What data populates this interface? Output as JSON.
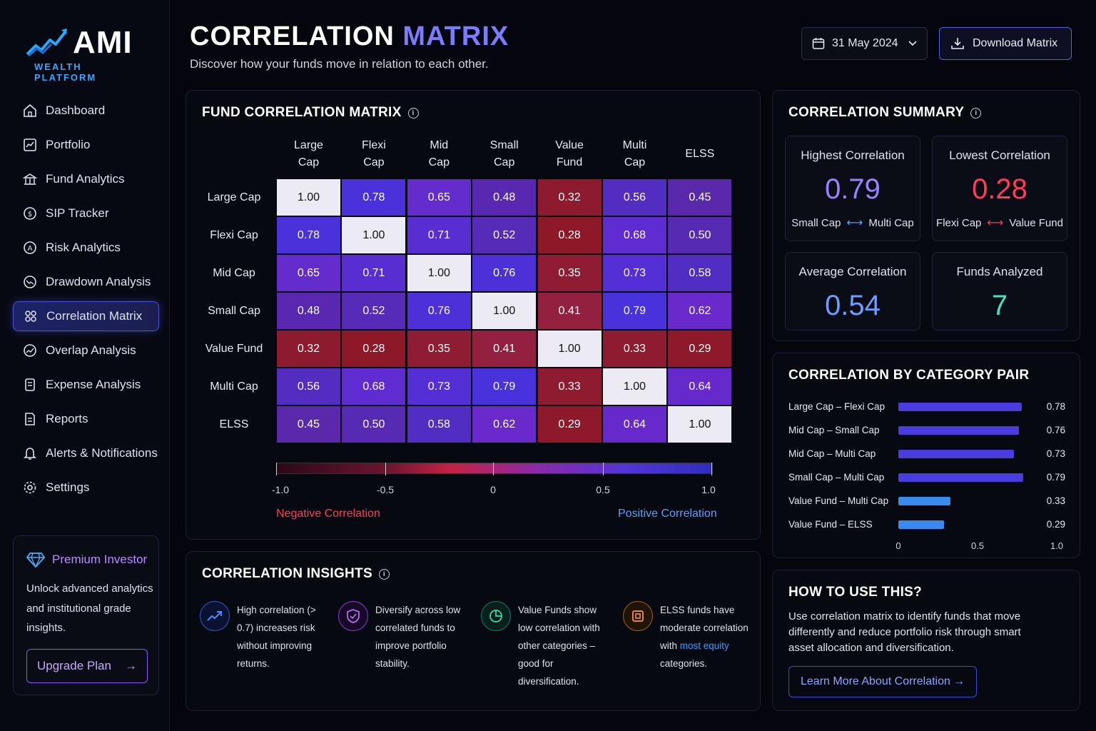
{
  "brand": {
    "name": "AMI",
    "subtitle": "WEALTH PLATFORM"
  },
  "nav": [
    {
      "label": "Dashboard",
      "icon": "home-icon"
    },
    {
      "label": "Portfolio",
      "icon": "chart-icon"
    },
    {
      "label": "Fund Analytics",
      "icon": "bank-icon"
    },
    {
      "label": "SIP Tracker",
      "icon": "sip-icon"
    },
    {
      "label": "Risk Analytics",
      "icon": "risk-icon"
    },
    {
      "label": "Drawdown Analysis",
      "icon": "drawdown-icon"
    },
    {
      "label": "Correlation Matrix",
      "icon": "grid-icon",
      "active": true
    },
    {
      "label": "Overlap Analysis",
      "icon": "overlap-icon"
    },
    {
      "label": "Expense Analysis",
      "icon": "expense-icon"
    },
    {
      "label": "Reports",
      "icon": "report-icon"
    },
    {
      "label": "Alerts & Notifications",
      "icon": "bell-icon"
    },
    {
      "label": "Settings",
      "icon": "gear-icon"
    }
  ],
  "premium": {
    "title": "Premium Investor",
    "text": "Unlock advanced analytics and institutional grade insights.",
    "button": "Upgrade Plan"
  },
  "header": {
    "title_part1": "CORRELATION",
    "title_part2": "MATRIX",
    "subtitle": "Discover how your funds move in relation to each other.",
    "date": "31 May 2024",
    "download": "Download Matrix"
  },
  "matrix": {
    "title": "FUND CORRELATION MATRIX",
    "col_heads": [
      [
        "Large",
        "Cap"
      ],
      [
        "Flexi",
        "Cap"
      ],
      [
        "Mid",
        "Cap"
      ],
      [
        "Small",
        "Cap"
      ],
      [
        "Value",
        "Fund"
      ],
      [
        "Multi",
        "Cap"
      ],
      [
        "ELSS",
        ""
      ]
    ],
    "row_heads": [
      "Large Cap",
      "Flexi Cap",
      "Mid Cap",
      "Small Cap",
      "Value Fund",
      "Multi Cap",
      "ELSS"
    ],
    "values": [
      [
        "1.00",
        "0.78",
        "0.65",
        "0.48",
        "0.32",
        "0.56",
        "0.45"
      ],
      [
        "0.78",
        "1.00",
        "0.71",
        "0.52",
        "0.28",
        "0.68",
        "0.50"
      ],
      [
        "0.65",
        "0.71",
        "1.00",
        "0.76",
        "0.35",
        "0.73",
        "0.58"
      ],
      [
        "0.48",
        "0.52",
        "0.76",
        "1.00",
        "0.41",
        "0.79",
        "0.62"
      ],
      [
        "0.32",
        "0.28",
        "0.35",
        "0.41",
        "1.00",
        "0.33",
        "0.29"
      ],
      [
        "0.56",
        "0.68",
        "0.73",
        "0.79",
        "0.33",
        "1.00",
        "0.64"
      ],
      [
        "0.45",
        "0.50",
        "0.58",
        "0.62",
        "0.29",
        "0.64",
        "1.00"
      ]
    ],
    "scale_ticks": [
      "-1.0",
      "-0.5",
      "0",
      "0.5",
      "1.0"
    ],
    "negative_label": "Negative Correlation",
    "positive_label": "Positive Correlation"
  },
  "insights": {
    "title": "CORRELATION INSIGHTS",
    "items": [
      {
        "text": "High correlation (> 0.7) increases risk without improving returns.",
        "icon": "trend-up-icon"
      },
      {
        "text": "Diversify across low correlated funds to improve portfolio stability.",
        "icon": "shield-icon"
      },
      {
        "text": "Value Funds show low correlation with other categories – good for diversification.",
        "icon": "pie-icon"
      },
      {
        "text_before": "ELSS funds have moderate correlation with ",
        "text_highlight": "most equity",
        "text_after": " categories.",
        "icon": "chip-icon"
      }
    ]
  },
  "summary": {
    "title": "CORRELATION SUMMARY",
    "highest": {
      "label": "Highest Correlation",
      "value": "0.79",
      "a": "Small Cap",
      "b": "Multi Cap"
    },
    "lowest": {
      "label": "Lowest Correlation",
      "value": "0.28",
      "a": "Flexi Cap",
      "b": "Value Fund"
    },
    "average": {
      "label": "Average Correlation",
      "value": "0.54"
    },
    "funds": {
      "label": "Funds Analyzed",
      "value": "7"
    }
  },
  "pairs": {
    "title": "CORRELATION BY CATEGORY PAIR",
    "items": [
      {
        "label": "Large Cap – Flexi Cap",
        "value": "0.78",
        "num": 0.78
      },
      {
        "label": "Mid Cap – Small Cap",
        "value": "0.76",
        "num": 0.76
      },
      {
        "label": "Mid Cap – Multi Cap",
        "value": "0.73",
        "num": 0.73
      },
      {
        "label": "Small Cap – Multi Cap",
        "value": "0.79",
        "num": 0.79
      },
      {
        "label": "Value Fund – Multi Cap",
        "value": "0.33",
        "num": 0.33
      },
      {
        "label": "Value Fund – ELSS",
        "value": "0.29",
        "num": 0.29
      }
    ],
    "axis": [
      "0",
      "0.5",
      "1.0"
    ]
  },
  "howto": {
    "title": "HOW TO USE THIS?",
    "text": "Use correlation matrix to identify funds that move differently and reduce portfolio risk through smart asset allocation and diversification.",
    "button": "Learn More About Correlation"
  },
  "colors": {
    "accent_purple": "#7b7bff",
    "positive": "#5aa0ff",
    "negative": "#ff3d5a",
    "highest_value": "#9a82ff",
    "lowest_value": "#ff3d5a",
    "average_value": "#6f9dff",
    "funds_value": "#4be0c0"
  }
}
